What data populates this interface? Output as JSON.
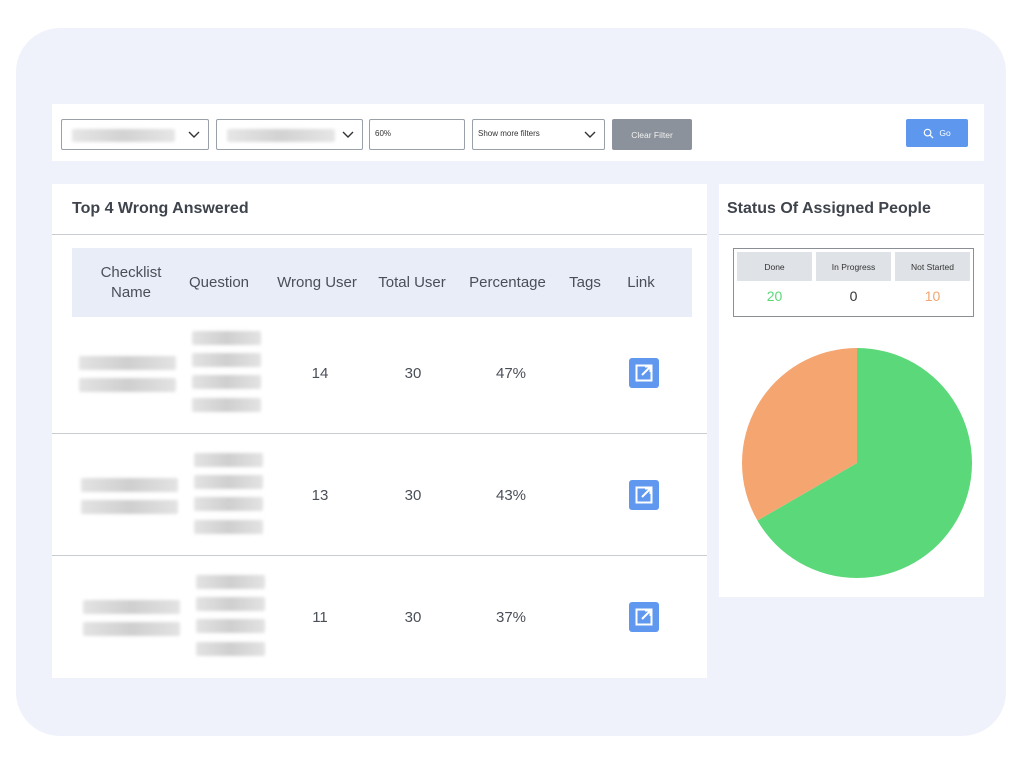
{
  "filters": {
    "select_1": "",
    "select_2": "",
    "percent_value": "60%",
    "more_filters_label": "Show more filters",
    "clear_label": "Clear Filter",
    "go_label": "Go"
  },
  "wrong_answered": {
    "title": "Top 4 Wrong Answered",
    "columns": {
      "checklist": "Checklist Name",
      "question": "Question",
      "wrong_user": "Wrong User",
      "total_user": "Total User",
      "percentage": "Percentage",
      "tags": "Tags",
      "link": "Link"
    },
    "rows": [
      {
        "wrong_user": "14",
        "total_user": "30",
        "percentage": "47%",
        "tags": ""
      },
      {
        "wrong_user": "13",
        "total_user": "30",
        "percentage": "43%",
        "tags": ""
      },
      {
        "wrong_user": "11",
        "total_user": "30",
        "percentage": "37%",
        "tags": ""
      }
    ]
  },
  "status": {
    "title": "Status Of Assigned People",
    "labels": {
      "done": "Done",
      "in_progress": "In Progress",
      "not_started": "Not Started"
    },
    "values": {
      "done": "20",
      "in_progress": "0",
      "not_started": "10"
    },
    "colors": {
      "done": "#5bd87a",
      "in_progress": "#333333",
      "not_started": "#f4a570"
    }
  },
  "chart_data": {
    "type": "pie",
    "categories": [
      "Done",
      "In Progress",
      "Not Started"
    ],
    "values": [
      20,
      0,
      10
    ],
    "colors": [
      "#5bd87a",
      "#9aa0a8",
      "#f4a570"
    ]
  },
  "icons": {
    "chevron": "chevron-down-icon",
    "search": "search-icon",
    "external_link": "external-link-icon"
  }
}
